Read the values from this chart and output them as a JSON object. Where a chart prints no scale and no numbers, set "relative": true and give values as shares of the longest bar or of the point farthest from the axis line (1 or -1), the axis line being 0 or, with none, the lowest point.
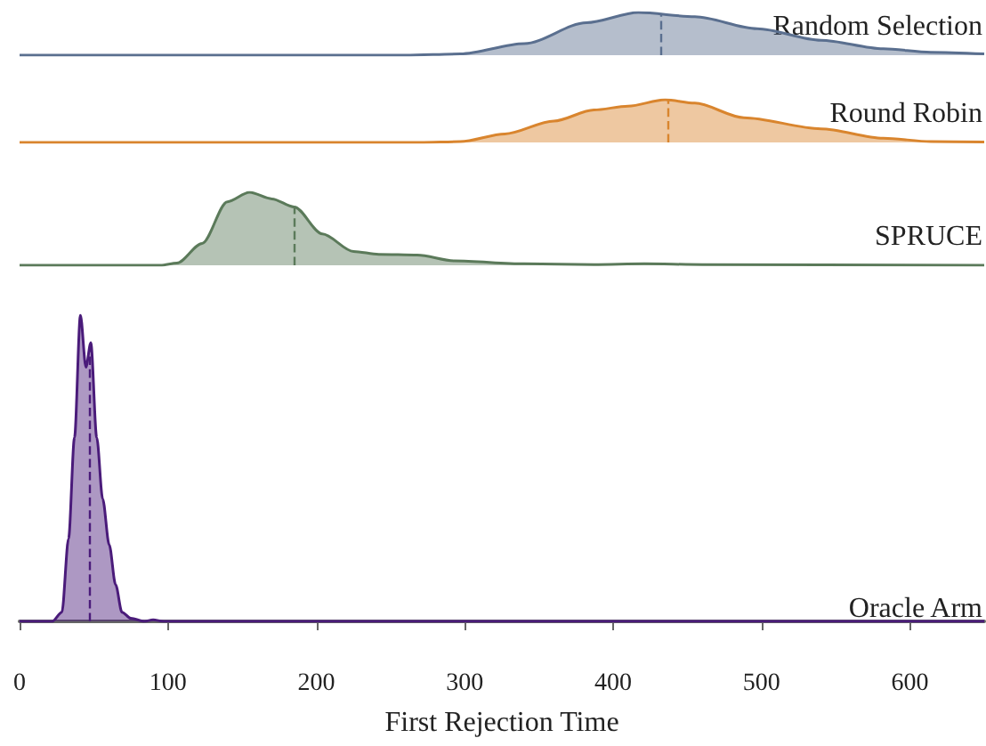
{
  "chart_data": [
    {
      "type": "area",
      "relative": true,
      "xlim": [
        0,
        650
      ],
      "tick_labels": false,
      "series": [
        {
          "name": "Random Selection",
          "color": "#5a6f8f",
          "x": [
            0,
            260,
            297,
            340,
            382,
            417,
            455,
            497,
            540,
            582,
            614,
            650
          ],
          "values": [
            0,
            0,
            0.03,
            0.27,
            0.76,
            1,
            0.9,
            0.62,
            0.35,
            0.15,
            0.07,
            0.03
          ]
        }
      ],
      "ref_lines": [
        {
          "axis": "x",
          "value": 432,
          "color": "#5a6f8f",
          "line_style": "dashed"
        }
      ]
    },
    {
      "type": "area",
      "relative": true,
      "xlim": [
        0,
        650
      ],
      "tick_labels": false,
      "series": [
        {
          "name": "Round Robin",
          "color": "#d9852e",
          "x": [
            0,
            270,
            297,
            327,
            360,
            387,
            410,
            435,
            455,
            488,
            540,
            582,
            614,
            650
          ],
          "values": [
            0,
            0,
            0.02,
            0.2,
            0.5,
            0.76,
            0.85,
            1,
            0.92,
            0.58,
            0.32,
            0.1,
            0.02,
            0.01
          ]
        }
      ],
      "ref_lines": [
        {
          "axis": "x",
          "value": 437,
          "color": "#d9852e",
          "line_style": "dashed"
        }
      ]
    },
    {
      "type": "area",
      "relative": true,
      "xlim": [
        0,
        650
      ],
      "tick_labels": false,
      "series": [
        {
          "name": "SPRUCE",
          "color": "#5b7a5a",
          "x": [
            0,
            95,
            106,
            123,
            140,
            155,
            170,
            185,
            204,
            225,
            242,
            268,
            293,
            340,
            387,
            421,
            460,
            650
          ],
          "values": [
            0,
            0,
            0.03,
            0.3,
            0.87,
            1,
            0.91,
            0.8,
            0.43,
            0.19,
            0.15,
            0.14,
            0.06,
            0.02,
            0.01,
            0.02,
            0.01,
            0
          ]
        }
      ],
      "ref_lines": [
        {
          "axis": "x",
          "value": 185,
          "color": "#5b7a5a",
          "line_style": "dashed"
        }
      ]
    },
    {
      "type": "area",
      "relative": true,
      "xlim": [
        0,
        650
      ],
      "xticks": [
        0,
        100,
        200,
        300,
        400,
        500,
        600
      ],
      "xlabel": "First Rejection Time",
      "series": [
        {
          "name": "Oracle Arm",
          "color": "#4a1b7a",
          "x": [
            0,
            22,
            28.5,
            33,
            37,
            41,
            44.7,
            48,
            52,
            56,
            60.4,
            64.7,
            69,
            75,
            84,
            90,
            97,
            650
          ],
          "values": [
            0,
            0,
            0.03,
            0.27,
            0.6,
            1,
            0.83,
            0.91,
            0.6,
            0.4,
            0.25,
            0.12,
            0.03,
            0.01,
            0,
            0.005,
            0,
            0
          ]
        }
      ],
      "ref_lines": [
        {
          "axis": "x",
          "value": 47,
          "color": "#4a1b7a",
          "line_style": "dashed"
        }
      ]
    }
  ]
}
